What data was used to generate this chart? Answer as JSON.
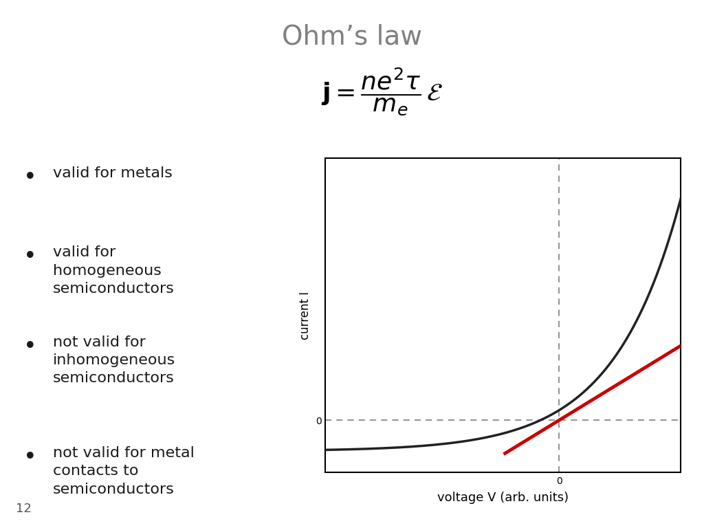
{
  "title": "Ohm’s law",
  "title_color": "#808080",
  "title_fontsize": 28,
  "background_color": "#ffffff",
  "bullet_points": [
    "valid for metals",
    "valid for\nhomogeneous\nsemiconductors",
    "not valid for\ninhomogeneous\nsemiconductors",
    "not valid for metal\ncontacts to\nsemiconductors"
  ],
  "bullet_color": "#1a1a1a",
  "bullet_fontsize": 16,
  "formula_box_color": "#5abcbf",
  "graph_xlabel": "voltage V (arb. units)",
  "graph_ylabel": "current I",
  "graph_xlabel_fontsize": 13,
  "graph_ylabel_fontsize": 12,
  "curve_color": "#222222",
  "line_color": "#cc0000",
  "dashed_color": "#888888",
  "page_number": "12",
  "curve_linewidth": 2.5,
  "red_linewidth": 3.5
}
